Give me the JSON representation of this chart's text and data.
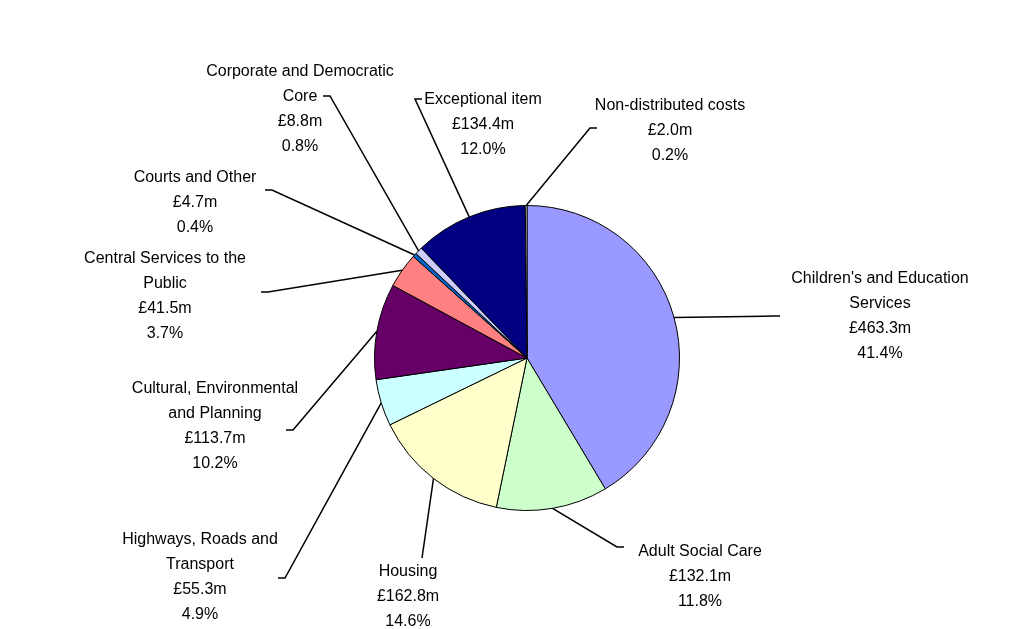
{
  "chart_data": {
    "type": "pie",
    "categories": [
      "Children's and Education Services",
      "Adult Social Care",
      "Housing",
      "Highways, Roads and Transport",
      "Cultural, Environmental and Planning",
      "Central Services to the Public",
      "Courts and Other",
      "Corporate and Democratic Core",
      "Exceptional item",
      "Non-distributed costs"
    ],
    "values": [
      463.3,
      132.1,
      162.8,
      55.3,
      113.7,
      41.5,
      4.7,
      8.8,
      134.4,
      2.0
    ],
    "colors": [
      "#9999ff",
      "#ccffcc",
      "#ffffcc",
      "#ccffff",
      "#660066",
      "#ff8080",
      "#0066cc",
      "#ccccff",
      "#000080",
      "#ffffff"
    ],
    "value_labels": [
      "£463.3m",
      "£132.1m",
      "£162.8m",
      "£55.3m",
      "£113.7m",
      "£41.5m",
      "£4.7m",
      "£8.8m",
      "£134.4m",
      "£2.0m"
    ],
    "annotations": [
      {
        "text": "41.4%",
        "x": "Children's and Education Services"
      },
      {
        "text": "11.8%",
        "x": "Adult Social Care"
      },
      {
        "text": "14.6%",
        "x": "Housing"
      },
      {
        "text": "4.9%",
        "x": "Highways, Roads and Transport"
      },
      {
        "text": "10.2%",
        "x": "Cultural, Environmental and Planning"
      },
      {
        "text": "3.7%",
        "x": "Central Services to the Public"
      },
      {
        "text": "0.4%",
        "x": "Courts and Other"
      },
      {
        "text": "0.8%",
        "x": "Corporate and Democratic Core"
      },
      {
        "text": "12.0%",
        "x": "Exceptional item"
      },
      {
        "text": "0.2%",
        "x": "Non-distributed costs"
      }
    ],
    "legend": false
  }
}
